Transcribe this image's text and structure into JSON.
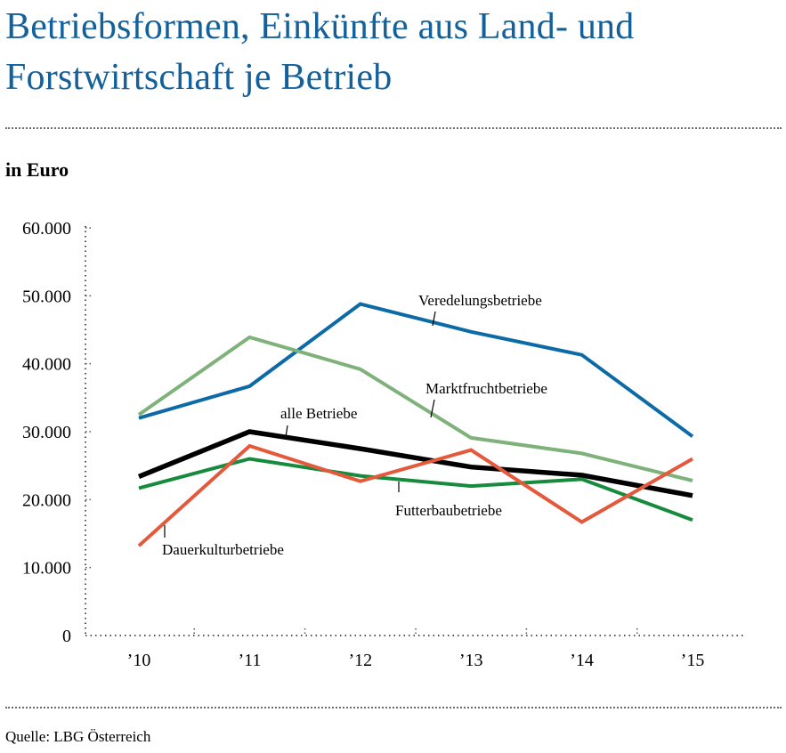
{
  "title": "Betriebsformen, Einkünfte aus Land- und Forstwirtschaft je Betrieb",
  "unit_label": "in Euro",
  "source": "Quelle: LBG Österreich",
  "chart_data": {
    "type": "line",
    "title": "Betriebsformen, Einkünfte aus Land- und Forstwirtschaft je Betrieb",
    "ylabel": "in Euro",
    "xlabel": "",
    "categories": [
      "’10",
      "’11",
      "’12",
      "’13",
      "’14",
      "’15"
    ],
    "yticks": [
      "0",
      "10.000",
      "20.000",
      "30.000",
      "40.000",
      "50.000",
      "60.000"
    ],
    "ylim": [
      0,
      60000
    ],
    "grid": false,
    "legend": "inline labels",
    "series": [
      {
        "name": "Veredelungsbetriebe",
        "color": "#0c6aa6",
        "values": [
          32000,
          36700,
          48800,
          44700,
          41300,
          29300
        ]
      },
      {
        "name": "Marktfruchtbetriebe",
        "color": "#7fb17a",
        "values": [
          32500,
          43900,
          39200,
          29100,
          26800,
          22800
        ]
      },
      {
        "name": "alle Betriebe",
        "color": "#000000",
        "values": [
          23400,
          30000,
          27500,
          24800,
          23600,
          20600
        ]
      },
      {
        "name": "Futterbaubetriebe",
        "color": "#178a3e",
        "values": [
          21700,
          26000,
          23500,
          22000,
          23000,
          17000
        ]
      },
      {
        "name": "Dauerkulturbetriebe",
        "color": "#e4593c",
        "values": [
          13200,
          27900,
          22700,
          27300,
          16700,
          26000
        ]
      }
    ]
  }
}
